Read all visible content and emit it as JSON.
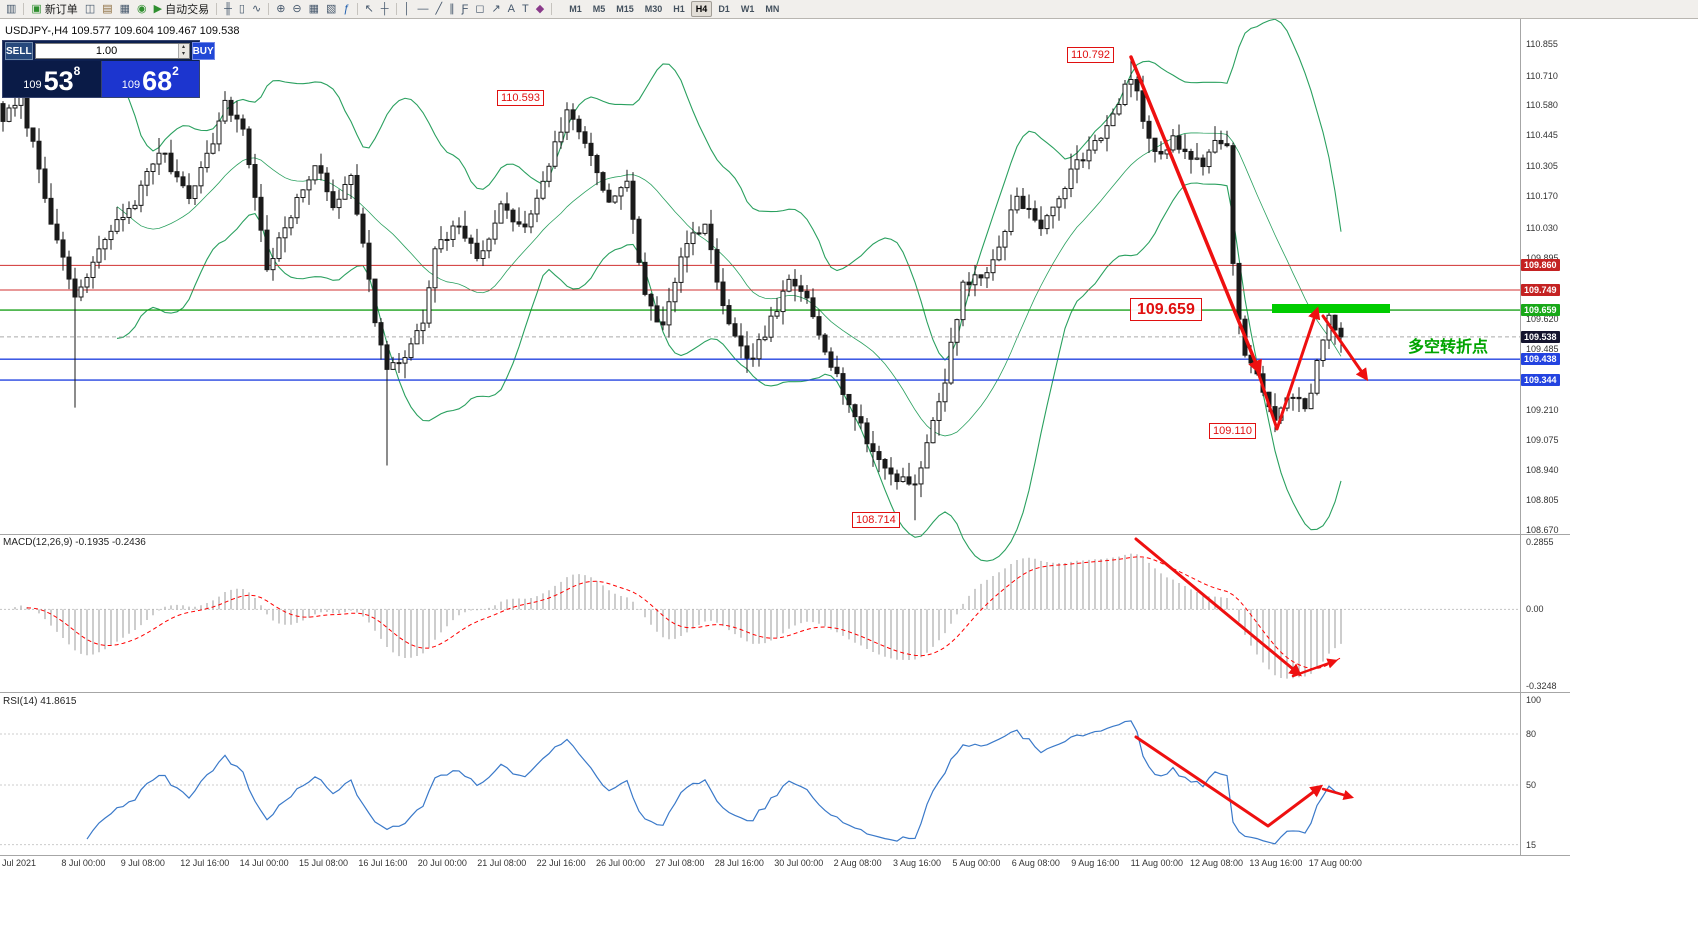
{
  "colors": {
    "bollinger": "#2aa05f",
    "candle": "#1a1a1a",
    "macd_hist": "#9b9b9b",
    "macd_signal": "#ff0000",
    "rsi_line": "#3a79c9",
    "arrow": "#ee1010",
    "highlight": "#00cc00",
    "axis_text": "#333333"
  },
  "toolbar": {
    "badge": "1",
    "items": [
      {
        "name": "chart-window-icon",
        "glyph": "▥"
      },
      {
        "separator": true
      },
      {
        "name": "new-order-button",
        "glyph": "▣",
        "color": "#2f8f2f",
        "label": "新订单"
      },
      {
        "name": "market-depth-icon",
        "glyph": "◫"
      },
      {
        "name": "template-icon",
        "glyph": "▤",
        "color": "#8a6a3a"
      },
      {
        "name": "profiles-icon",
        "glyph": "▦"
      },
      {
        "name": "refresh-icon",
        "glyph": "◉",
        "color": "#2f8f2f"
      },
      {
        "name": "auto-trading-button",
        "glyph": "▶",
        "color": "#2f8f2f",
        "label": "自动交易"
      },
      {
        "separator": true
      },
      {
        "name": "bar-chart-icon",
        "glyph": "╫"
      },
      {
        "name": "candlestick-chart-icon",
        "glyph": "▯"
      },
      {
        "name": "line-chart-icon",
        "glyph": "∿"
      },
      {
        "separator": true
      },
      {
        "name": "zoom-in-icon",
        "glyph": "⊕"
      },
      {
        "name": "zoom-out-icon",
        "glyph": "⊖"
      },
      {
        "name": "tile-windows-icon",
        "glyph": "▦"
      },
      {
        "name": "auto-arrange-icon",
        "glyph": "▧"
      },
      {
        "name": "indicators-icon",
        "glyph": "ƒ",
        "color": "#1f5fae"
      },
      {
        "separator": true
      },
      {
        "name": "cursor-icon",
        "glyph": "↖"
      },
      {
        "name": "crosshair-icon",
        "glyph": "┼"
      },
      {
        "separator": true
      },
      {
        "name": "vertical-line-icon",
        "glyph": "│"
      },
      {
        "name": "horizontal-line-icon",
        "glyph": "―"
      },
      {
        "name": "trendline-icon",
        "glyph": "╱"
      },
      {
        "name": "channel-icon",
        "glyph": "∥"
      },
      {
        "name": "fibonacci-icon",
        "glyph": "Ƒ"
      },
      {
        "name": "shapes-icon",
        "glyph": "◻"
      },
      {
        "name": "arrow-tool-icon",
        "glyph": "↗"
      },
      {
        "name": "text-icon",
        "glyph": "A"
      },
      {
        "name": "text-label-icon",
        "glyph": "T"
      },
      {
        "name": "properties-icon",
        "glyph": "◆",
        "color": "#8a3a8a"
      },
      {
        "separator": true
      }
    ],
    "timeframes": [
      {
        "label": "M1"
      },
      {
        "label": "M5"
      },
      {
        "label": "M15"
      },
      {
        "label": "M30"
      },
      {
        "label": "H1"
      },
      {
        "label": "H4",
        "active": true
      },
      {
        "label": "D1"
      },
      {
        "label": "W1"
      },
      {
        "label": "MN"
      }
    ]
  },
  "quote_header": "USDJPY-,H4  109.577 109.604 109.467 109.538",
  "trade_panel": {
    "sell": "SELL",
    "buy": "BUY",
    "volume": "1.00",
    "spin_up": "▴",
    "spin_down": "▾",
    "bid_prefix": "109",
    "bid_big": "53",
    "bid_sup": "8",
    "ask_prefix": "109",
    "ask_big": "68",
    "ask_sup": "2"
  },
  "annotations": {
    "peak_mid": "110.593",
    "peak_high": "110.792",
    "key_level": "109.659",
    "swing_low": "109.110",
    "major_low": "108.714",
    "turning_point": "多空转折点"
  },
  "indicator_labels": {
    "macd": "MACD(12,26,9) -0.1935 -0.2436",
    "rsi": "RSI(14) 41.8615"
  },
  "price_axis": {
    "ticks": [
      {
        "label": "110.855",
        "value": 110.855
      },
      {
        "label": "110.710",
        "value": 110.71
      },
      {
        "label": "110.580",
        "value": 110.58
      },
      {
        "label": "110.445",
        "value": 110.445
      },
      {
        "label": "110.305",
        "value": 110.305
      },
      {
        "label": "110.170",
        "value": 110.17
      },
      {
        "label": "110.030",
        "value": 110.03
      },
      {
        "label": "109.895",
        "value": 109.895
      },
      {
        "label": "109.620",
        "value": 109.62
      },
      {
        "label": "109.485",
        "value": 109.485
      },
      {
        "label": "109.210",
        "value": 109.21
      },
      {
        "label": "109.075",
        "value": 109.075
      },
      {
        "label": "108.940",
        "value": 108.94
      },
      {
        "label": "108.805",
        "value": 108.805
      },
      {
        "label": "108.670",
        "value": 108.67
      }
    ],
    "tags": [
      {
        "label": "109.860",
        "value": 109.86,
        "bg": "#c42222"
      },
      {
        "label": "109.749",
        "value": 109.749,
        "bg": "#c42222"
      },
      {
        "label": "109.659",
        "value": 109.659,
        "bg": "#18a818"
      },
      {
        "label": "109.538",
        "value": 109.538,
        "bg": "#14142e"
      },
      {
        "label": "109.438",
        "value": 109.438,
        "bg": "#2343e0"
      },
      {
        "label": "109.344",
        "value": 109.344,
        "bg": "#2343e0"
      }
    ]
  },
  "macd_axis": [
    {
      "label": "0.2855",
      "value": 0.2855
    },
    {
      "label": "0.00",
      "value": 0
    },
    {
      "label": "-0.3248",
      "value": -0.3248
    }
  ],
  "rsi_axis": [
    {
      "label": "100",
      "value": 100
    },
    {
      "label": "80",
      "value": 80
    },
    {
      "label": "50",
      "value": 50
    },
    {
      "label": "15",
      "value": 15
    }
  ],
  "time_axis": [
    "Jul 2021",
    "8 Jul 00:00",
    "9 Jul 08:00",
    "12 Jul 16:00",
    "14 Jul 00:00",
    "15 Jul 08:00",
    "16 Jul 16:00",
    "20 Jul 00:00",
    "21 Jul 08:00",
    "22 Jul 16:00",
    "26 Jul 00:00",
    "27 Jul 08:00",
    "28 Jul 16:00",
    "30 Jul 00:00",
    "2 Aug 08:00",
    "3 Aug 16:00",
    "5 Aug 00:00",
    "6 Aug 08:00",
    "9 Aug 16:00",
    "11 Aug 00:00",
    "12 Aug 08:00",
    "13 Aug 16:00",
    "17 Aug 00:00"
  ],
  "chart_data": {
    "type": "candlestick",
    "symbol": "USDJPY-",
    "timeframe": "H4",
    "last_quote": {
      "open": 109.577,
      "high": 109.604,
      "low": 109.467,
      "close": 109.538
    },
    "visible_price_range": [
      108.67,
      110.855
    ],
    "candle_count": 224,
    "close_waypoints": [
      [
        0,
        110.52
      ],
      [
        3,
        110.6
      ],
      [
        6,
        110.3
      ],
      [
        9,
        109.95
      ],
      [
        12,
        109.72
      ],
      [
        14,
        109.8
      ],
      [
        17,
        109.98
      ],
      [
        22,
        110.15
      ],
      [
        26,
        110.38
      ],
      [
        31,
        110.18
      ],
      [
        34,
        110.35
      ],
      [
        37,
        110.58
      ],
      [
        40,
        110.48
      ],
      [
        44,
        109.85
      ],
      [
        48,
        110.08
      ],
      [
        52,
        110.32
      ],
      [
        55,
        110.12
      ],
      [
        58,
        110.28
      ],
      [
        62,
        109.62
      ],
      [
        64,
        109.38
      ],
      [
        67,
        109.45
      ],
      [
        70,
        109.6
      ],
      [
        72,
        109.92
      ],
      [
        76,
        110.05
      ],
      [
        79,
        109.88
      ],
      [
        83,
        110.12
      ],
      [
        87,
        110.02
      ],
      [
        91,
        110.32
      ],
      [
        94,
        110.55
      ],
      [
        97,
        110.42
      ],
      [
        101,
        110.15
      ],
      [
        104,
        110.22
      ],
      [
        107,
        109.72
      ],
      [
        110,
        109.58
      ],
      [
        114,
        109.98
      ],
      [
        117,
        110.02
      ],
      [
        121,
        109.58
      ],
      [
        124,
        109.42
      ],
      [
        127,
        109.55
      ],
      [
        131,
        109.78
      ],
      [
        134,
        109.72
      ],
      [
        138,
        109.42
      ],
      [
        142,
        109.18
      ],
      [
        145,
        109.02
      ],
      [
        148,
        108.92
      ],
      [
        152,
        108.88
      ],
      [
        154,
        109.05
      ],
      [
        157,
        109.35
      ],
      [
        160,
        109.78
      ],
      [
        164,
        109.82
      ],
      [
        167,
        110.02
      ],
      [
        169,
        110.18
      ],
      [
        173,
        110.02
      ],
      [
        177,
        110.22
      ],
      [
        179,
        110.32
      ],
      [
        182,
        110.42
      ],
      [
        185,
        110.52
      ],
      [
        188,
        110.72
      ],
      [
        190,
        110.52
      ],
      [
        192,
        110.35
      ],
      [
        195,
        110.42
      ],
      [
        197,
        110.38
      ],
      [
        200,
        110.32
      ],
      [
        202,
        110.4
      ],
      [
        204,
        110.42
      ],
      [
        205,
        109.85
      ],
      [
        206,
        109.62
      ],
      [
        207,
        109.48
      ],
      [
        209,
        109.36
      ],
      [
        210,
        109.3
      ],
      [
        212,
        109.16
      ],
      [
        214,
        109.24
      ],
      [
        216,
        109.28
      ],
      [
        217,
        109.24
      ],
      [
        218,
        109.3
      ],
      [
        220,
        109.52
      ],
      [
        221,
        109.62
      ],
      [
        222,
        109.56
      ],
      [
        223,
        109.538
      ]
    ],
    "wick_overrides": {
      "12": {
        "low": 109.22
      },
      "64": {
        "low": 108.96
      },
      "94": {
        "high": 110.593
      },
      "152": {
        "low": 108.714
      },
      "188": {
        "high": 110.792
      },
      "212": {
        "low": 109.11
      },
      "221": {
        "high": 109.663
      },
      "223": {
        "high": 109.604,
        "low": 109.467
      }
    },
    "levels": [
      {
        "price": 109.86,
        "color": "#d03030",
        "width": 1,
        "style": "solid"
      },
      {
        "price": 109.749,
        "color": "#d03030",
        "width": 1,
        "style": "solid"
      },
      {
        "price": 109.659,
        "color": "#1aa01a",
        "width": 1.4,
        "style": "solid"
      },
      {
        "price": 109.538,
        "color": "#aaaaaa",
        "width": 1,
        "style": "dash"
      },
      {
        "price": 109.438,
        "color": "#2343e0",
        "width": 1.4,
        "style": "solid"
      },
      {
        "price": 109.344,
        "color": "#2343e0",
        "width": 1.4,
        "style": "solid"
      }
    ],
    "overlays": {
      "bollinger": {
        "period": 20,
        "deviation": 2
      }
    },
    "macd": {
      "fast": 12,
      "slow": 26,
      "signal": 9,
      "value": -0.1935,
      "signal_value": -0.2436,
      "range": [
        -0.3248,
        0.2855
      ]
    },
    "rsi": {
      "period": 14,
      "value": 41.8615,
      "levels": [
        80,
        50,
        15
      ],
      "range": [
        13,
        100
      ]
    }
  }
}
